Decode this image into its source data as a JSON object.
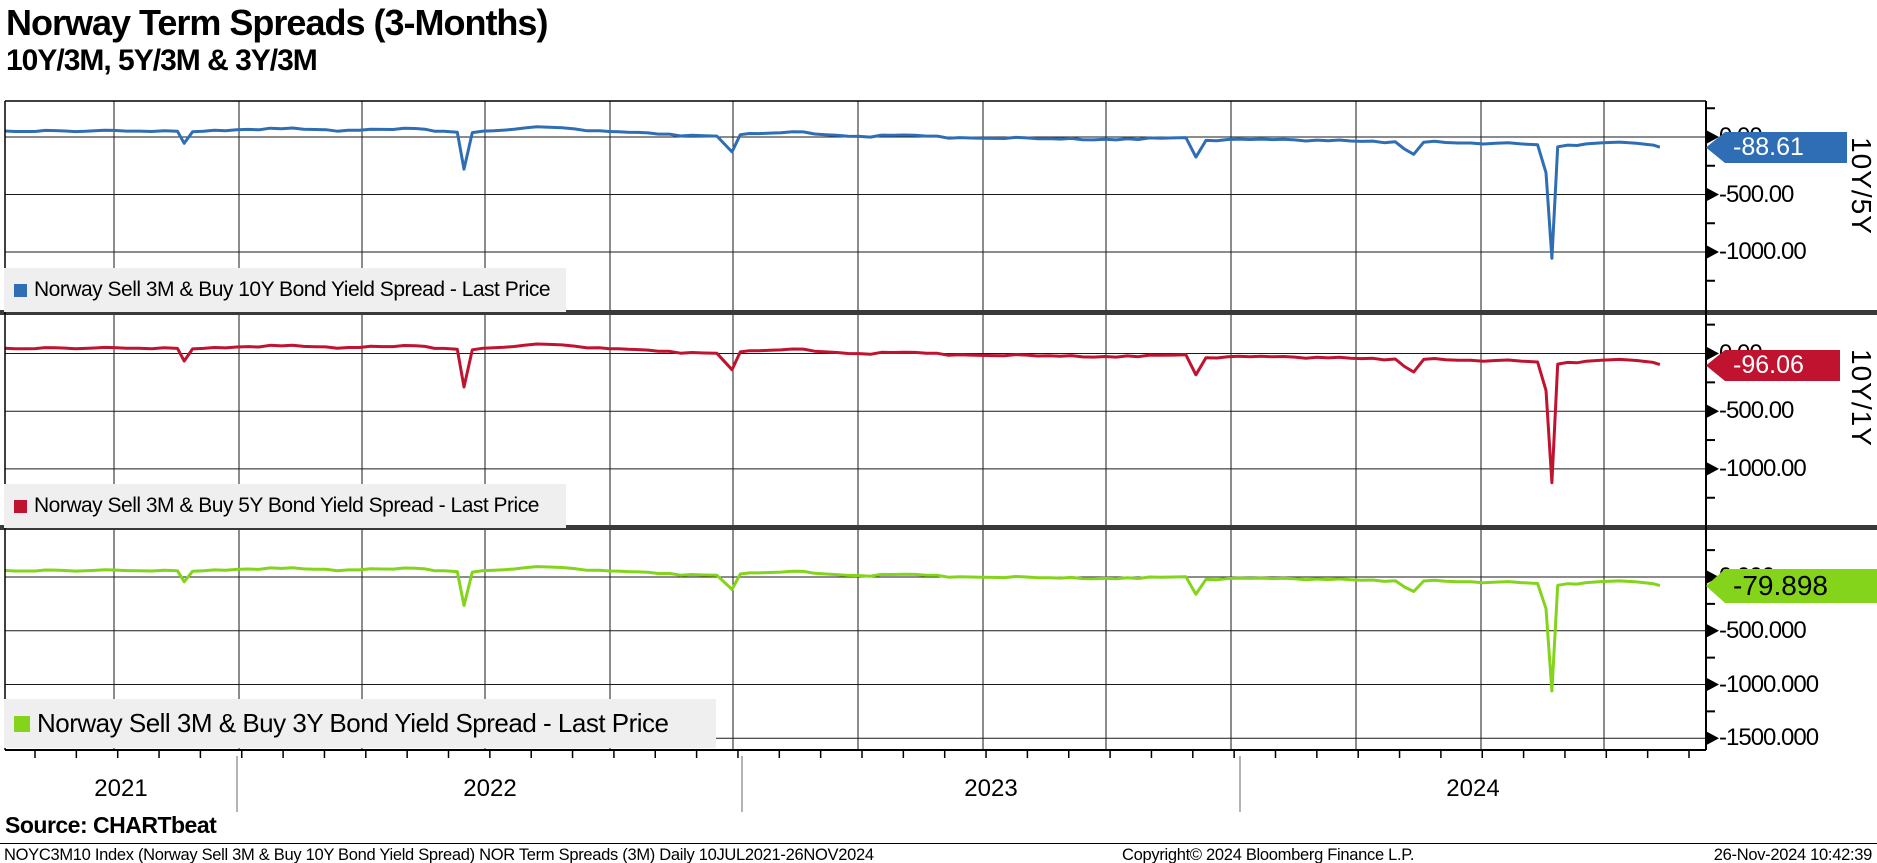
{
  "title": "Norway Term Spreads (3-Months)",
  "subtitle": "10Y/3M, 5Y/3M & 3Y/3M",
  "source_label": "Source: CHARTbeat",
  "footer": {
    "left": "NOYC3M10 Index (Norway Sell 3M & Buy 10Y Bond Yield Spread) NOR Term Spreads (3M)  Daily 10JUL2021-26NOV2024",
    "copyright": "Copyright© 2024 Bloomberg Finance L.P.",
    "timestamp": "26-Nov-2024 10:42:39"
  },
  "x_axis": {
    "year_labels": [
      "2021",
      "2022",
      "2023",
      "2024"
    ]
  },
  "panels": [
    {
      "legend": "Norway Sell 3M & Buy 10Y Bond Yield Spread - Last Price",
      "axis_title": "10Y/5Y",
      "last_value": "-88.61",
      "color": "#2f6eb4",
      "ticks": [
        "0.00",
        "-500.00",
        "-1000.00"
      ]
    },
    {
      "legend": "Norway Sell 3M & Buy 5Y Bond Yield Spread - Last Price",
      "axis_title": "10Y/1Y",
      "last_value": "-96.06",
      "color": "#bf1330",
      "ticks": [
        "0.00",
        "-500.00",
        "-1000.00"
      ]
    },
    {
      "legend": "Norway Sell 3M & Buy 3Y Bond Yield Spread - Last Price",
      "axis_title": "",
      "last_value": "-79.898",
      "color": "#84d41c",
      "ticks": [
        "0.000",
        "-500.000",
        "-1000.000",
        "-1500.000"
      ]
    }
  ],
  "chart_data": {
    "type": "line",
    "title": "Norway Term Spreads (3-Months)",
    "subtitle": "10Y/3M, 5Y/3M & 3Y/3M",
    "x_unit": "fraction of date range 10JUL2021 - 26NOV2024",
    "x_year_labels": [
      "2021",
      "2022",
      "2023",
      "2024"
    ],
    "grid": "quarterly vertical gridlines; horizontal gridlines every 500 units; three stacked panels",
    "legend_position": "bottom-left inside each panel",
    "x": [
      0.0,
      0.012,
      0.03,
      0.048,
      0.065,
      0.08,
      0.095,
      0.103,
      0.107,
      0.112,
      0.125,
      0.145,
      0.165,
      0.185,
      0.205,
      0.225,
      0.245,
      0.262,
      0.27,
      0.274,
      0.279,
      0.292,
      0.31,
      0.325,
      0.34,
      0.355,
      0.372,
      0.39,
      0.41,
      0.425,
      0.434,
      0.439,
      0.45,
      0.47,
      0.49,
      0.51,
      0.53,
      0.55,
      0.57,
      0.59,
      0.61,
      0.63,
      0.65,
      0.67,
      0.69,
      0.705,
      0.711,
      0.717,
      0.73,
      0.75,
      0.77,
      0.79,
      0.81,
      0.83,
      0.841,
      0.847,
      0.86,
      0.875,
      0.89,
      0.905,
      0.915,
      0.92,
      0.9235,
      0.927,
      0.933,
      0.944,
      0.954,
      0.964,
      0.974,
      0.984,
      0.988
    ],
    "series": [
      {
        "name": "Norway Sell 3M & Buy 10Y Bond Yield Spread - Last Price",
        "axis_title": "10Y/5Y",
        "last_price": -88.61,
        "color": "#2f6eb4",
        "y_ticks": [
          0,
          -500,
          -1000
        ],
        "ylim": [
          -1550,
          310
        ],
        "values": [
          52,
          48,
          56,
          50,
          57,
          51,
          55,
          50,
          -55,
          46,
          58,
          66,
          72,
          65,
          58,
          66,
          74,
          50,
          42,
          -280,
          38,
          55,
          78,
          85,
          70,
          55,
          42,
          25,
          15,
          8,
          -130,
          20,
          30,
          45,
          20,
          5,
          15,
          8,
          -5,
          -12,
          -8,
          -18,
          -25,
          -15,
          -10,
          -5,
          -175,
          -30,
          -22,
          -18,
          -25,
          -32,
          -38,
          -42,
          -150,
          -45,
          -48,
          -52,
          -55,
          -60,
          -68,
          -310,
          -1055,
          -85,
          -70,
          -60,
          -50,
          -44,
          -54,
          -70,
          -88.61
        ]
      },
      {
        "name": "Norway Sell 3M & Buy 5Y Bond Yield Spread - Last Price",
        "axis_title": "10Y/1Y",
        "last_price": -96.06,
        "color": "#bf1330",
        "y_ticks": [
          0,
          -500,
          -1000
        ],
        "ylim": [
          -1530,
          290
        ],
        "values": [
          46,
          42,
          50,
          44,
          51,
          45,
          49,
          44,
          -65,
          40,
          52,
          60,
          66,
          59,
          52,
          60,
          68,
          44,
          36,
          -290,
          32,
          49,
          72,
          79,
          64,
          49,
          36,
          19,
          9,
          2,
          -140,
          14,
          24,
          39,
          14,
          -1,
          9,
          2,
          -11,
          -18,
          -14,
          -24,
          -31,
          -21,
          -16,
          -11,
          -185,
          -36,
          -28,
          -24,
          -31,
          -38,
          -44,
          -48,
          -160,
          -51,
          -54,
          -58,
          -61,
          -66,
          -74,
          -320,
          -1120,
          -92,
          -77,
          -67,
          -57,
          -51,
          -61,
          -77,
          -96.06
        ]
      },
      {
        "name": "Norway Sell 3M & Buy 3Y Bond Yield Spread - Last Price",
        "axis_title": "",
        "last_price": -79.898,
        "color": "#84d41c",
        "y_ticks": [
          0,
          -500,
          -1000,
          -1500
        ],
        "ylim": [
          -1610,
          390
        ],
        "values": [
          60,
          56,
          64,
          58,
          65,
          59,
          63,
          58,
          -45,
          54,
          66,
          74,
          80,
          73,
          66,
          74,
          82,
          58,
          50,
          -265,
          46,
          63,
          86,
          93,
          78,
          63,
          50,
          33,
          23,
          16,
          -115,
          28,
          38,
          53,
          28,
          13,
          23,
          16,
          3,
          -4,
          0,
          -10,
          -17,
          -7,
          -2,
          3,
          -160,
          -22,
          -14,
          -10,
          -17,
          -24,
          -30,
          -34,
          -135,
          -37,
          -40,
          -44,
          -47,
          -52,
          -60,
          -295,
          -1060,
          -77,
          -62,
          -52,
          -42,
          -36,
          -46,
          -62,
          -79.898
        ]
      }
    ]
  }
}
